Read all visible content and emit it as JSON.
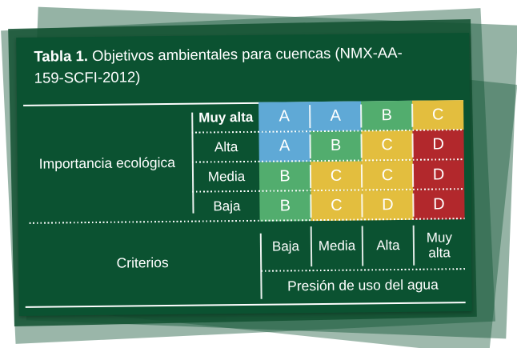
{
  "figure": {
    "title_bold": "Tabla 1.",
    "title_line1_rest": " Objetivos ambientales para cuencas (NMX-AA-",
    "title_line2": "159-SCFI-2012)"
  },
  "matrix": {
    "axis_label": "Importancia ecológica",
    "rows": [
      {
        "label": "Muy alta",
        "cells": [
          {
            "letter": "A",
            "color": "#5FA9D6"
          },
          {
            "letter": "A",
            "color": "#5FA9D6"
          },
          {
            "letter": "B",
            "color": "#52AD6E"
          },
          {
            "letter": "C",
            "color": "#E3BE3E"
          }
        ]
      },
      {
        "label": "Alta",
        "cells": [
          {
            "letter": "A",
            "color": "#5FA9D6"
          },
          {
            "letter": "B",
            "color": "#52AD6E"
          },
          {
            "letter": "C",
            "color": "#E3BE3E"
          },
          {
            "letter": "D",
            "color": "#B2282C"
          }
        ]
      },
      {
        "label": "Media",
        "cells": [
          {
            "letter": "B",
            "color": "#52AD6E"
          },
          {
            "letter": "C",
            "color": "#E3BE3E"
          },
          {
            "letter": "C",
            "color": "#E3BE3E"
          },
          {
            "letter": "D",
            "color": "#B2282C"
          }
        ]
      },
      {
        "label": "Baja",
        "cells": [
          {
            "letter": "B",
            "color": "#52AD6E"
          },
          {
            "letter": "C",
            "color": "#E3BE3E"
          },
          {
            "letter": "D",
            "color": "#E3BE3E"
          },
          {
            "letter": "D",
            "color": "#B2282C"
          }
        ]
      }
    ]
  },
  "criteria": {
    "label": "Criterios",
    "columns": [
      "Baja",
      "Media",
      "Alta",
      "Muy alta"
    ],
    "axis_label": "Presión de uso del agua"
  },
  "palette": {
    "card_green": "#0B5231",
    "cell_blue": "#5FA9D6",
    "cell_green": "#52AD6E",
    "cell_yellow": "#E3BE3E",
    "cell_red": "#B2282C",
    "sheet_sage": "rgba(14,82,49,0.44)",
    "text_white": "#FFFFFF"
  },
  "chart_data": {
    "type": "table",
    "title": "Tabla 1. Objetivos ambientales para cuencas (NMX-AA-159-SCFI-2012)",
    "row_axis_label": "Importancia ecológica",
    "col_axis_label": "Presión de uso del agua",
    "col_group_label": "Criterios",
    "row_categories": [
      "Muy alta",
      "Alta",
      "Media",
      "Baja"
    ],
    "col_categories": [
      "Baja",
      "Media",
      "Alta",
      "Muy alta"
    ],
    "values": [
      [
        "A",
        "A",
        "B",
        "C"
      ],
      [
        "A",
        "B",
        "C",
        "D"
      ],
      [
        "B",
        "C",
        "C",
        "D"
      ],
      [
        "B",
        "C",
        "D",
        "D"
      ]
    ],
    "cell_colors": [
      [
        "#5FA9D6",
        "#5FA9D6",
        "#52AD6E",
        "#E3BE3E"
      ],
      [
        "#5FA9D6",
        "#52AD6E",
        "#E3BE3E",
        "#B2282C"
      ],
      [
        "#52AD6E",
        "#E3BE3E",
        "#E3BE3E",
        "#B2282C"
      ],
      [
        "#52AD6E",
        "#E3BE3E",
        "#E3BE3E",
        "#B2282C"
      ]
    ],
    "grid": "dotted white separators",
    "legend_position": "none"
  }
}
